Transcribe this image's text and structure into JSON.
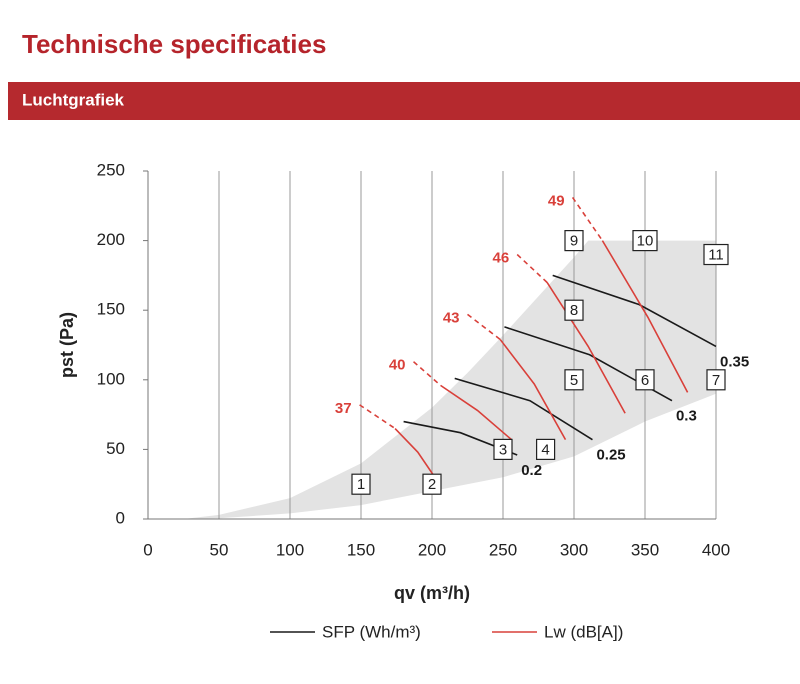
{
  "header": {
    "title": "Technische specificaties",
    "section": "Luchtgrafiek"
  },
  "chart_data": {
    "type": "performance",
    "x_label": "qv (m³/h)",
    "y_label": "pst (Pa)",
    "xlim": [
      0,
      400
    ],
    "xticks": [
      0,
      50,
      100,
      150,
      200,
      250,
      300,
      350,
      400
    ],
    "ylim": [
      0,
      250
    ],
    "yticks": [
      0,
      50,
      100,
      150,
      200,
      250
    ],
    "grid": "x",
    "operating_area": {
      "color": "#e3e3e3",
      "x": [
        25,
        50,
        100,
        150,
        175,
        200,
        225,
        250,
        275,
        300,
        310,
        400,
        400,
        350,
        300,
        250,
        200,
        150,
        100,
        50
      ],
      "y": [
        0,
        3,
        15,
        40,
        60,
        80,
        105,
        132,
        160,
        188,
        200,
        200,
        90,
        70,
        45,
        30,
        20,
        10,
        4,
        0.5
      ]
    },
    "series": [
      {
        "name": "SFP (Wh/m³)",
        "color": "#1a1a1a",
        "curves": [
          {
            "label": "0.2",
            "x": [
              180,
              220,
              260
            ],
            "y": [
              70,
              62,
              46
            ]
          },
          {
            "label": "0.25",
            "x": [
              216,
              269,
              313
            ],
            "y": [
              101,
              85,
              57
            ]
          },
          {
            "label": "0.3",
            "x": [
              251,
              311,
              369
            ],
            "y": [
              138,
              118,
              85
            ]
          },
          {
            "label": "0.35",
            "x": [
              285,
              346,
              400
            ],
            "y": [
              175,
              154,
              124
            ]
          }
        ]
      },
      {
        "name": "Lw (dB[A])",
        "color": "#d9403a",
        "curves": [
          {
            "label": "37",
            "dashed_x": [
              149,
              174
            ],
            "dashed_y": [
              82,
              65
            ],
            "x": [
              174,
              190,
              202
            ],
            "y": [
              65,
              48,
              30
            ]
          },
          {
            "label": "40",
            "dashed_x": [
              187,
              206
            ],
            "dashed_y": [
              113,
              96
            ],
            "x": [
              206,
              232,
              256
            ],
            "y": [
              96,
              78,
              57
            ]
          },
          {
            "label": "43",
            "dashed_x": [
              225,
              248
            ],
            "dashed_y": [
              147,
              129
            ],
            "x": [
              248,
              272,
              294
            ],
            "y": [
              129,
              97,
              57
            ]
          },
          {
            "label": "46",
            "dashed_x": [
              260,
              281
            ],
            "dashed_y": [
              190,
              170
            ],
            "x": [
              281,
              310,
              336
            ],
            "y": [
              170,
              124,
              76
            ]
          },
          {
            "label": "49",
            "dashed_x": [
              299,
              320
            ],
            "dashed_y": [
              231,
              200
            ],
            "x": [
              320,
              352,
              380
            ],
            "y": [
              200,
              145,
              91
            ]
          }
        ]
      }
    ],
    "points": [
      {
        "label": "1",
        "x": 150,
        "y": 25
      },
      {
        "label": "2",
        "x": 200,
        "y": 25
      },
      {
        "label": "3",
        "x": 250,
        "y": 50
      },
      {
        "label": "4",
        "x": 280,
        "y": 50
      },
      {
        "label": "5",
        "x": 300,
        "y": 100
      },
      {
        "label": "6",
        "x": 350,
        "y": 100
      },
      {
        "label": "7",
        "x": 400,
        "y": 100
      },
      {
        "label": "8",
        "x": 300,
        "y": 150
      },
      {
        "label": "9",
        "x": 300,
        "y": 200
      },
      {
        "label": "10",
        "x": 350,
        "y": 200
      },
      {
        "label": "11",
        "x": 400,
        "y": 190
      }
    ]
  }
}
